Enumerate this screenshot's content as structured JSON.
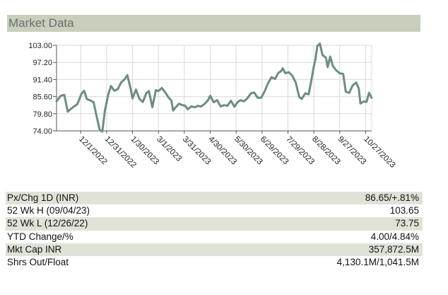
{
  "header": {
    "title": "Market Data"
  },
  "colors": {
    "line": "#6e8c86",
    "grid": "#d8d8d8",
    "header_bg": "#c9cfbd",
    "row_shade": "#dfe3d7"
  },
  "chart_data": {
    "type": "line",
    "ylim": [
      74.0,
      103.0
    ],
    "y_ticks": [
      "103.00",
      "97.20",
      "91.40",
      "85.60",
      "79.80",
      "74.00"
    ],
    "y_tick_values": [
      103.0,
      97.2,
      91.4,
      85.6,
      79.8,
      74.0
    ],
    "x_ticks": [
      "12/1/2022",
      "12/31/2022",
      "1/30/2023",
      "3/1/2023",
      "3/31/2023",
      "4/30/2023",
      "5/30/2023",
      "6/29/2023",
      "7/29/2023",
      "8/28/2023",
      "9/27/2023",
      "10/27/2023"
    ],
    "x_range": [
      "2022-11-03",
      "2023-11-03"
    ],
    "grid": true,
    "series": [
      {
        "values": [
          [
            "2022-11-03",
            84.0
          ],
          [
            "2022-11-08",
            85.9
          ],
          [
            "2022-11-12",
            86.2
          ],
          [
            "2022-11-16",
            80.5
          ],
          [
            "2022-11-22",
            82.0
          ],
          [
            "2022-11-27",
            83.0
          ],
          [
            "2022-12-02",
            86.6
          ],
          [
            "2022-12-05",
            87.6
          ],
          [
            "2022-12-08",
            84.8
          ],
          [
            "2022-12-12",
            84.3
          ],
          [
            "2022-12-16",
            83.7
          ],
          [
            "2022-12-19",
            79.5
          ],
          [
            "2022-12-23",
            74.3
          ],
          [
            "2022-12-26",
            73.75
          ],
          [
            "2022-12-29",
            80.8
          ],
          [
            "2023-01-02",
            86.4
          ],
          [
            "2023-01-05",
            89.2
          ],
          [
            "2023-01-09",
            87.6
          ],
          [
            "2023-01-13",
            88.2
          ],
          [
            "2023-01-17",
            90.5
          ],
          [
            "2023-01-21",
            91.5
          ],
          [
            "2023-01-24",
            92.9
          ],
          [
            "2023-01-28",
            88.0
          ],
          [
            "2023-01-30",
            85.0
          ],
          [
            "2023-02-03",
            88.0
          ],
          [
            "2023-02-07",
            84.8
          ],
          [
            "2023-02-11",
            83.8
          ],
          [
            "2023-02-15",
            86.8
          ],
          [
            "2023-02-18",
            87.5
          ],
          [
            "2023-02-22",
            82.0
          ],
          [
            "2023-02-26",
            87.8
          ],
          [
            "2023-03-01",
            87.5
          ],
          [
            "2023-03-05",
            88.5
          ],
          [
            "2023-03-09",
            87.0
          ],
          [
            "2023-03-13",
            85.2
          ],
          [
            "2023-03-16",
            84.3
          ],
          [
            "2023-03-18",
            80.9
          ],
          [
            "2023-03-21",
            82.0
          ],
          [
            "2023-03-25",
            83.2
          ],
          [
            "2023-03-28",
            82.8
          ],
          [
            "2023-04-01",
            82.5
          ],
          [
            "2023-04-04",
            81.3
          ],
          [
            "2023-04-08",
            82.3
          ],
          [
            "2023-04-12",
            82.0
          ],
          [
            "2023-04-16",
            82.5
          ],
          [
            "2023-04-19",
            82.2
          ],
          [
            "2023-04-23",
            83.0
          ],
          [
            "2023-04-27",
            84.2
          ],
          [
            "2023-04-30",
            85.9
          ],
          [
            "2023-05-04",
            83.7
          ],
          [
            "2023-05-08",
            84.4
          ],
          [
            "2023-05-12",
            82.3
          ],
          [
            "2023-05-16",
            82.7
          ],
          [
            "2023-05-20",
            82.5
          ],
          [
            "2023-05-24",
            84.2
          ],
          [
            "2023-05-28",
            82.2
          ],
          [
            "2023-06-01",
            83.8
          ],
          [
            "2023-06-04",
            84.4
          ],
          [
            "2023-06-08",
            84.0
          ],
          [
            "2023-06-12",
            85.0
          ],
          [
            "2023-06-16",
            86.7
          ],
          [
            "2023-06-20",
            87.0
          ],
          [
            "2023-06-24",
            85.2
          ],
          [
            "2023-06-28",
            85.2
          ],
          [
            "2023-07-02",
            87.4
          ],
          [
            "2023-07-06",
            90.2
          ],
          [
            "2023-07-10",
            92.2
          ],
          [
            "2023-07-14",
            91.6
          ],
          [
            "2023-07-18",
            93.7
          ],
          [
            "2023-07-21",
            94.2
          ],
          [
            "2023-07-23",
            95.2
          ],
          [
            "2023-07-26",
            93.5
          ],
          [
            "2023-07-30",
            93.9
          ],
          [
            "2023-08-03",
            92.7
          ],
          [
            "2023-08-07",
            90.4
          ],
          [
            "2023-08-11",
            85.5
          ],
          [
            "2023-08-14",
            84.8
          ],
          [
            "2023-08-18",
            86.7
          ],
          [
            "2023-08-22",
            86.4
          ],
          [
            "2023-08-25",
            91.0
          ],
          [
            "2023-08-28",
            95.8
          ],
          [
            "2023-08-30",
            98.5
          ],
          [
            "2023-09-01",
            102.7
          ],
          [
            "2023-09-04",
            103.6
          ],
          [
            "2023-09-07",
            99.7
          ],
          [
            "2023-09-11",
            98.8
          ],
          [
            "2023-09-13",
            95.6
          ],
          [
            "2023-09-16",
            99.2
          ],
          [
            "2023-09-19",
            96.0
          ],
          [
            "2023-09-23",
            94.5
          ],
          [
            "2023-09-27",
            93.5
          ],
          [
            "2023-10-01",
            93.3
          ],
          [
            "2023-10-04",
            87.3
          ],
          [
            "2023-10-08",
            86.9
          ],
          [
            "2023-10-12",
            89.4
          ],
          [
            "2023-10-16",
            90.4
          ],
          [
            "2023-10-19",
            88.4
          ],
          [
            "2023-10-21",
            83.3
          ],
          [
            "2023-10-25",
            84.0
          ],
          [
            "2023-10-28",
            83.8
          ],
          [
            "2023-10-31",
            86.9
          ],
          [
            "2023-11-03",
            85.2
          ]
        ]
      }
    ]
  },
  "stats": [
    {
      "label": "Px/Chg 1D (INR)",
      "value": "86.65/+.81%"
    },
    {
      "label": "52 Wk H (09/04/23)",
      "value": "103.65"
    },
    {
      "label": "52 Wk L (12/26/22)",
      "value": "73.75"
    },
    {
      "label": "YTD Change/%",
      "value": "4.00/4.84%"
    },
    {
      "label": "Mkt Cap INR",
      "value": "357,872.5M"
    },
    {
      "label": "Shrs Out/Float",
      "value": "4,130.1M/1,041.5M"
    }
  ]
}
